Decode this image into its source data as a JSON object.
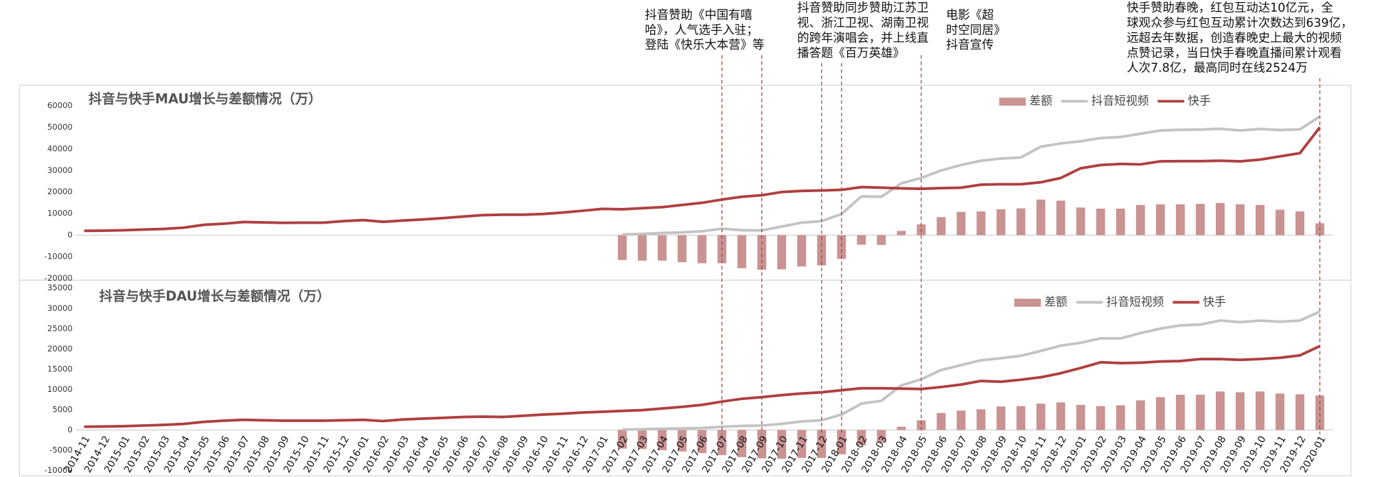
{
  "chart_data": [
    {
      "type": "bar_line",
      "title": "抖音与快手MAU增长与差额情况（万）",
      "ylim": [
        -20000,
        60000
      ],
      "yticks": [
        -20000,
        -10000,
        0,
        10000,
        20000,
        30000,
        40000,
        50000,
        60000
      ],
      "legend": "upper right",
      "series": [
        {
          "name": "差额",
          "kind": "bar",
          "color": "#c99392",
          "values": [
            null,
            null,
            null,
            null,
            null,
            null,
            null,
            null,
            null,
            null,
            null,
            null,
            null,
            null,
            null,
            null,
            null,
            null,
            null,
            null,
            null,
            null,
            null,
            null,
            null,
            null,
            null,
            -11500,
            -11800,
            -11800,
            -12500,
            -13000,
            -13000,
            -15300,
            -16000,
            -15800,
            -14500,
            -14000,
            -11000,
            -4400,
            -4500,
            2000,
            5000,
            8400,
            10800,
            11000,
            12000,
            12400,
            16500,
            16000,
            12800,
            12300,
            12300,
            14000,
            14300,
            14300,
            14500,
            14900,
            14300,
            14000,
            11800,
            11000,
            5500
          ]
        },
        {
          "name": "抖音短视频",
          "kind": "line",
          "color": "#c3c3c3",
          "values": [
            null,
            null,
            null,
            null,
            null,
            null,
            null,
            null,
            null,
            null,
            null,
            null,
            null,
            null,
            null,
            null,
            null,
            null,
            null,
            null,
            null,
            null,
            null,
            null,
            null,
            null,
            null,
            300,
            600,
            1000,
            1300,
            1800,
            3000,
            2300,
            2200,
            4000,
            5800,
            6500,
            9800,
            18000,
            17800,
            24000,
            26500,
            30000,
            32500,
            34500,
            35500,
            36000,
            41000,
            42500,
            43500,
            45000,
            45500,
            47000,
            48500,
            48800,
            48900,
            49300,
            48500,
            49200,
            48700,
            49000,
            55000
          ]
        },
        {
          "name": "快手",
          "kind": "line",
          "color": "#b03f3f",
          "values": [
            2000,
            2100,
            2300,
            2600,
            2900,
            3500,
            4800,
            5300,
            6100,
            5900,
            5700,
            5800,
            5800,
            6500,
            7000,
            6200,
            6800,
            7300,
            7900,
            8600,
            9300,
            9500,
            9500,
            9800,
            10500,
            11300,
            12200,
            12000,
            12500,
            13000,
            14000,
            15000,
            16500,
            17800,
            18500,
            20000,
            20500,
            20700,
            21000,
            22300,
            22000,
            21700,
            21500,
            21800,
            22000,
            23400,
            23600,
            23600,
            24500,
            26500,
            31000,
            32500,
            33000,
            32800,
            34200,
            34300,
            34300,
            34500,
            34200,
            35000,
            36500,
            38000,
            50000
          ]
        }
      ]
    },
    {
      "type": "bar_line",
      "title": "抖音与快手DAU增长与差额情况（万）",
      "categories": [
        "2014-11",
        "2014-12",
        "2015-01",
        "2015-02",
        "2015-03",
        "2015-04",
        "2015-05",
        "2015-06",
        "2015-07",
        "2015-08",
        "2015-09",
        "2015-10",
        "2015-11",
        "2015-12",
        "2016-01",
        "2016-02",
        "2016-03",
        "2016-04",
        "2016-05",
        "2016-06",
        "2016-07",
        "2016-08",
        "2016-09",
        "2016-10",
        "2016-11",
        "2016-12",
        "2017-01",
        "2017-02",
        "2017-03",
        "2017-04",
        "2017-05",
        "2017-06",
        "2017-07",
        "2017-08",
        "2017-09",
        "2017-10",
        "2017-11",
        "2017-12",
        "2018-01",
        "2018-02",
        "2018-03",
        "2018-04",
        "2018-05",
        "2018-06",
        "2018-07",
        "2018-08",
        "2018-09",
        "2018-10",
        "2018-11",
        "2018-12",
        "2019-01",
        "2019-02",
        "2019-03",
        "2019-04",
        "2019-05",
        "2019-06",
        "2019-07",
        "2019-08",
        "2019-09",
        "2019-10",
        "2019-11",
        "2019-12",
        "2020-01"
      ],
      "ylim": [
        -10000,
        35000
      ],
      "yticks": [
        -10000,
        -5000,
        0,
        5000,
        10000,
        15000,
        20000,
        25000,
        30000,
        35000
      ],
      "legend": "upper right",
      "series": [
        {
          "name": "差额",
          "kind": "bar",
          "color": "#c99392",
          "values": [
            null,
            null,
            null,
            null,
            null,
            null,
            null,
            null,
            null,
            null,
            null,
            null,
            null,
            null,
            null,
            null,
            null,
            null,
            null,
            null,
            null,
            null,
            null,
            null,
            null,
            null,
            null,
            -4600,
            -4700,
            -5000,
            -5300,
            -5700,
            -6200,
            -6700,
            -7000,
            -7100,
            -6900,
            -6900,
            -6000,
            -3800,
            -3100,
            800,
            2400,
            4200,
            4800,
            5100,
            5800,
            5900,
            6500,
            6800,
            6200,
            5900,
            6100,
            7300,
            8100,
            8700,
            8700,
            9500,
            9300,
            9500,
            9000,
            8800,
            8500
          ]
        },
        {
          "name": "抖音短视频",
          "kind": "line",
          "color": "#c3c3c3",
          "values": [
            null,
            null,
            null,
            null,
            null,
            null,
            null,
            null,
            null,
            null,
            null,
            null,
            null,
            null,
            null,
            null,
            null,
            null,
            null,
            null,
            null,
            null,
            null,
            null,
            null,
            null,
            null,
            100,
            200,
            300,
            400,
            500,
            800,
            1000,
            1100,
            1500,
            2100,
            2400,
            3800,
            6500,
            7200,
            11000,
            12500,
            14800,
            16000,
            17200,
            17700,
            18300,
            19500,
            20800,
            21500,
            22600,
            22600,
            23900,
            25000,
            25800,
            26000,
            27000,
            26600,
            27000,
            26700,
            27000,
            29200
          ]
        },
        {
          "name": "快手",
          "kind": "line",
          "color": "#b03f3f",
          "values": [
            800,
            850,
            950,
            1100,
            1250,
            1500,
            2000,
            2300,
            2500,
            2400,
            2300,
            2300,
            2300,
            2400,
            2500,
            2200,
            2600,
            2800,
            3000,
            3200,
            3300,
            3200,
            3500,
            3800,
            4000,
            4300,
            4500,
            4700,
            4900,
            5300,
            5700,
            6200,
            7000,
            7700,
            8100,
            8600,
            9000,
            9300,
            9800,
            10300,
            10300,
            10200,
            10100,
            10600,
            11200,
            12100,
            11900,
            12400,
            13000,
            14000,
            15300,
            16700,
            16500,
            16600,
            16900,
            17000,
            17500,
            17500,
            17300,
            17500,
            17800,
            18400,
            20700
          ]
        }
      ]
    }
  ],
  "annotations": [
    {
      "lines": [
        "抖音赞助《中国有嘻",
        "哈》，人气选手入驻；",
        "登陆《快乐大本营》等"
      ],
      "at": [
        "2017-07",
        "2017-09"
      ]
    },
    {
      "lines": [
        "抖音赞助同步赞助江苏卫",
        "视、浙江卫视、湖南卫视",
        "的跨年演唱会，并上线直",
        "播答题《百万英雄》"
      ],
      "at": [
        "2017-12",
        "2018-01"
      ]
    },
    {
      "lines": [
        "电影《超",
        "时空同居》",
        "抖音宣传"
      ],
      "at": [
        "2018-05"
      ]
    },
    {
      "lines": [
        "快手赞助春晚，红包互动达10亿元，全",
        "球观众参与红包互动累计次数达到639亿，",
        "远超去年数据，创造春晚史上最大的视频",
        "点赞记录，当日快手春晚直播间累计观看",
        "人次7.8亿，最高同时在线2524万"
      ],
      "at": [
        "2020-01"
      ]
    }
  ]
}
